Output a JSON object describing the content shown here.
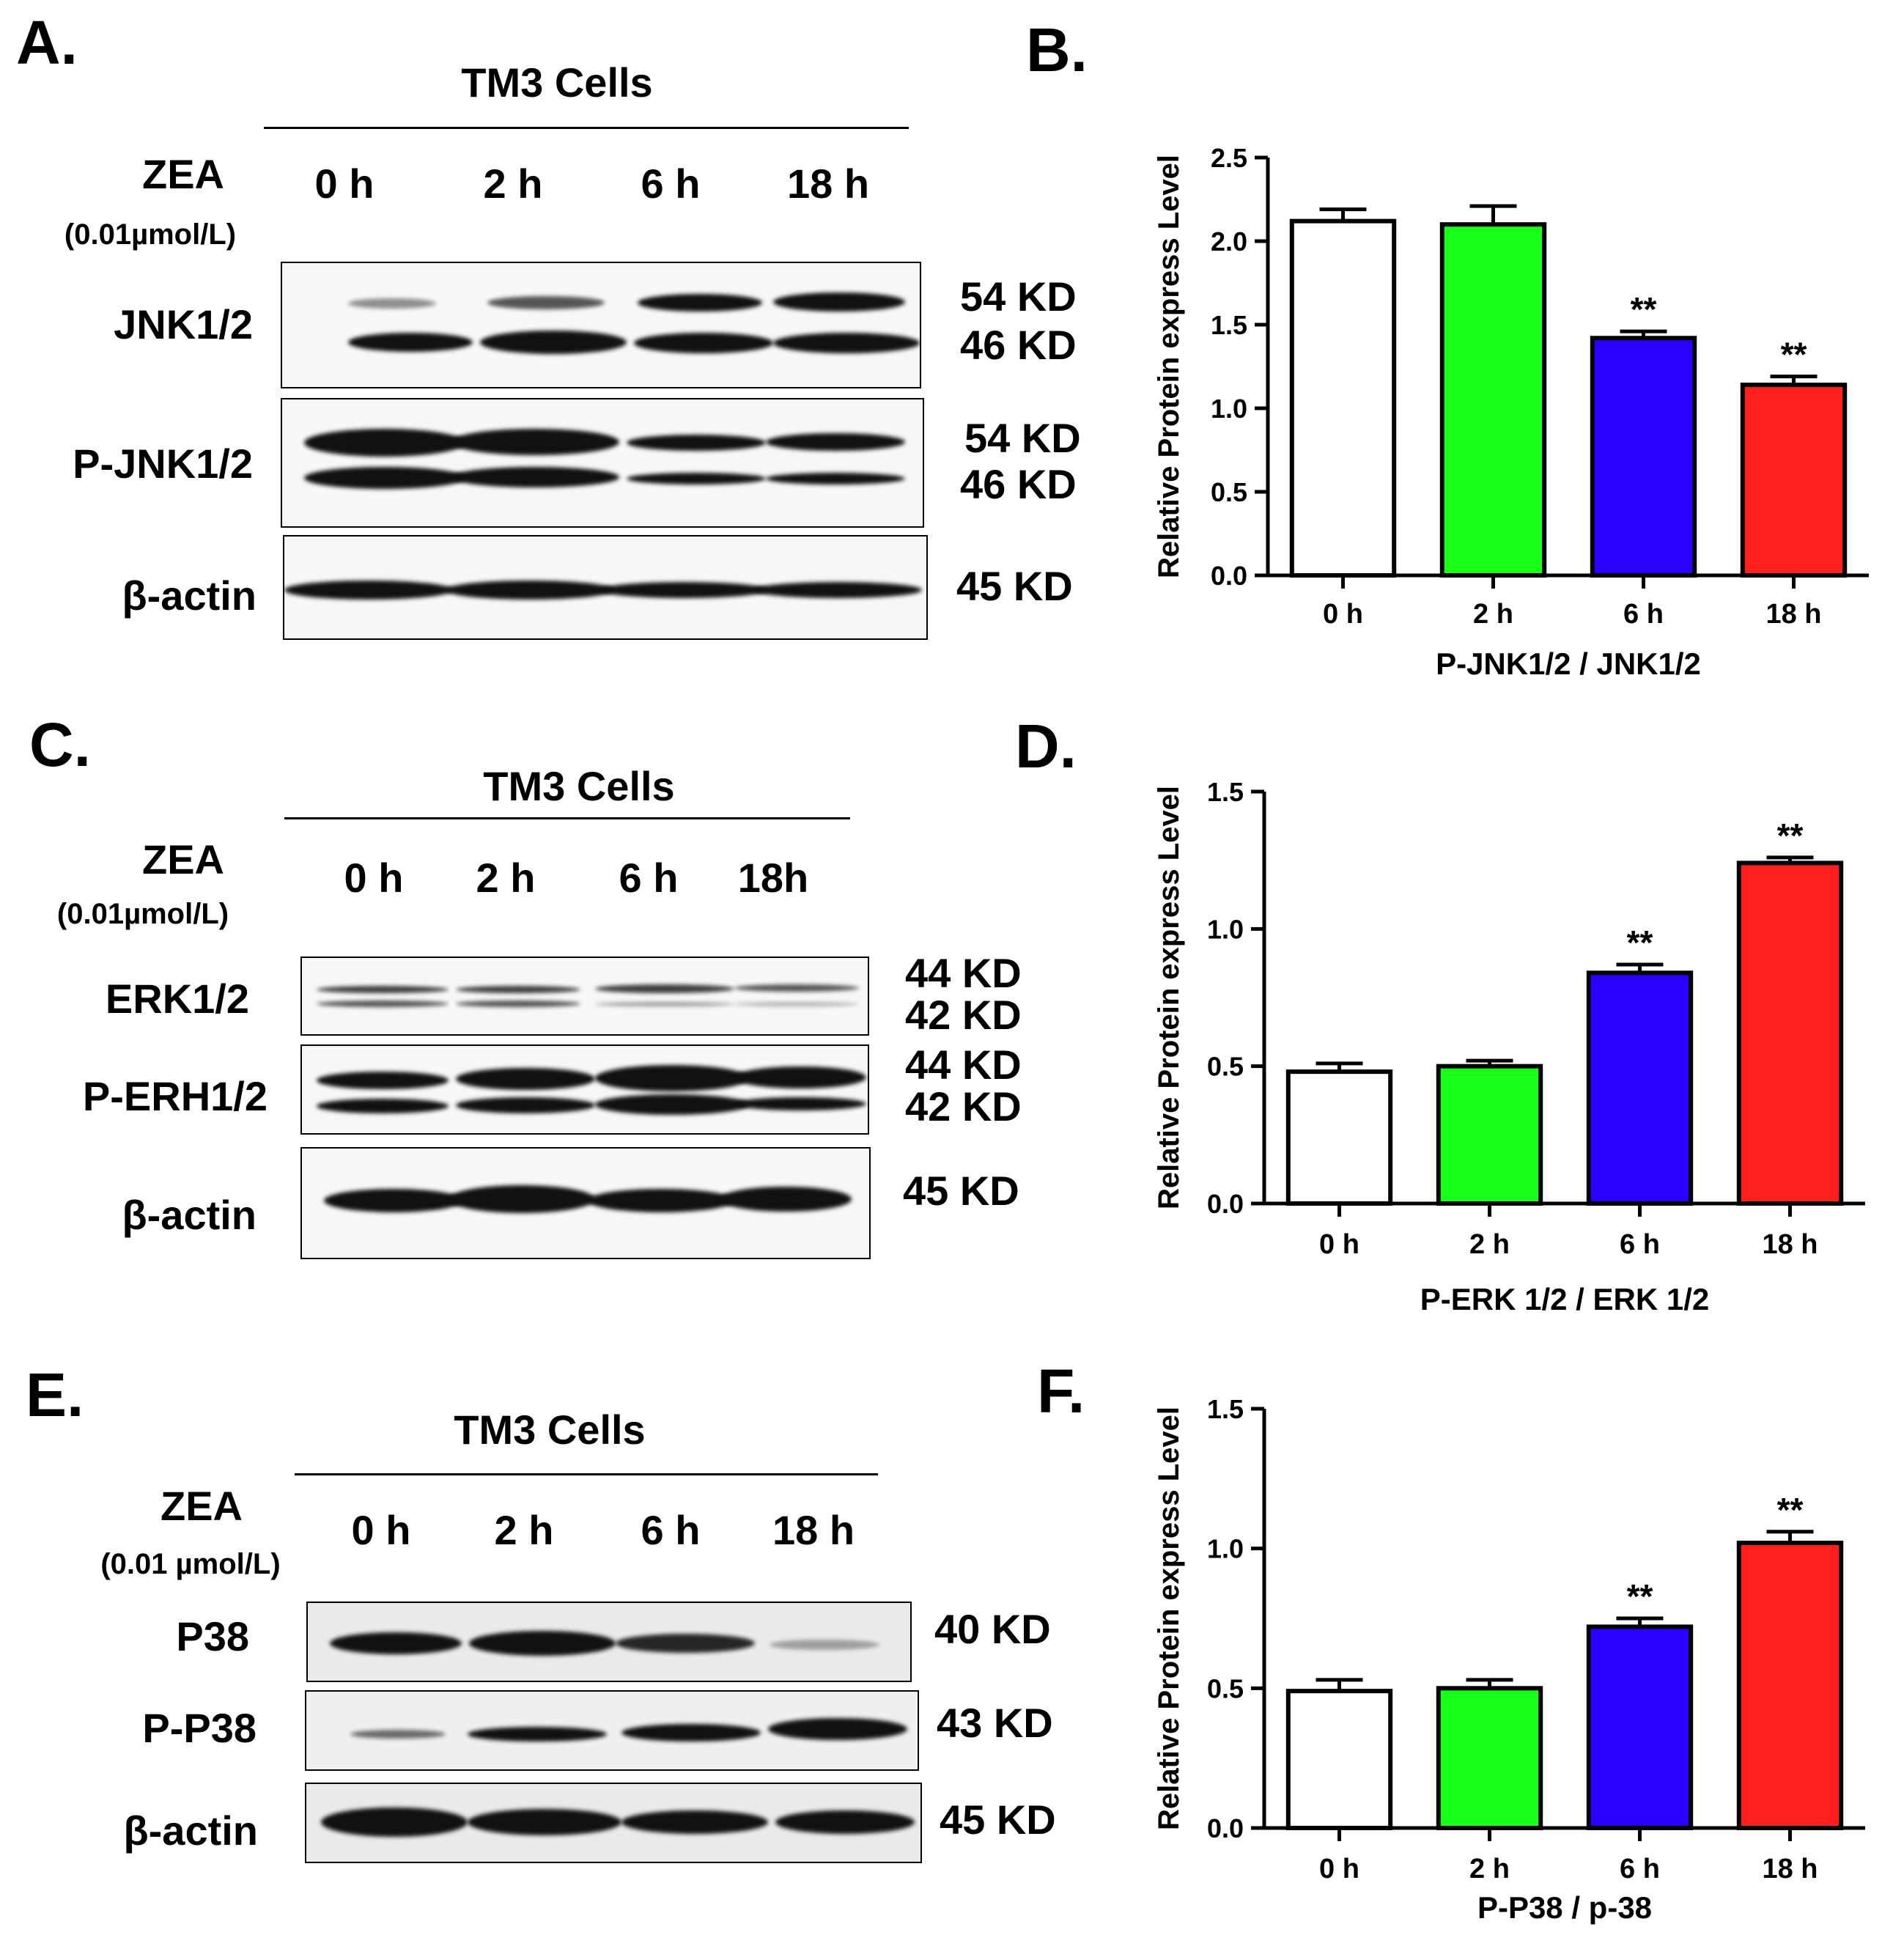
{
  "panels": {
    "A": {
      "letter": "A.",
      "title": "TM3 Cells",
      "treatment": "ZEA",
      "concentration": "(0.01µmol/L)",
      "timepoints": [
        "0 h",
        "2 h",
        "6 h",
        "18 h"
      ],
      "rows": [
        {
          "label": "JNK1/2",
          "kd_top": "54 KD",
          "kd_bottom": "46 KD"
        },
        {
          "label": "P-JNK1/2",
          "kd_top": "54 KD",
          "kd_bottom": "46 KD"
        },
        {
          "label": "β-actin",
          "kd_top": "45 KD"
        }
      ]
    },
    "C": {
      "letter": "C.",
      "title": "TM3 Cells",
      "treatment": "ZEA",
      "concentration": "(0.01µmol/L)",
      "timepoints": [
        "0 h",
        "2 h",
        "6 h",
        "18h"
      ],
      "rows": [
        {
          "label": "ERK1/2",
          "kd_top": "44 KD",
          "kd_bottom": "42 KD"
        },
        {
          "label": "P-ERH1/2",
          "kd_top": "44 KD",
          "kd_bottom": "42 KD"
        },
        {
          "label": "β-actin",
          "kd_top": "45 KD"
        }
      ]
    },
    "E": {
      "letter": "E.",
      "title": "TM3 Cells",
      "treatment": "ZEA",
      "concentration": "(0.01 µmol/L)",
      "timepoints": [
        "0 h",
        "2 h",
        "6 h",
        "18 h"
      ],
      "rows": [
        {
          "label": "P38",
          "kd_top": "40 KD"
        },
        {
          "label": "P-P38",
          "kd_top": "43 KD"
        },
        {
          "label": "β-actin",
          "kd_top": "45 KD"
        }
      ]
    },
    "B": {
      "letter": "B."
    },
    "D": {
      "letter": "D."
    },
    "F": {
      "letter": "F."
    }
  },
  "chart_data": [
    {
      "id": "B",
      "type": "bar",
      "categories": [
        "0 h",
        "2 h",
        "6 h",
        "18 h"
      ],
      "values": [
        2.12,
        2.1,
        1.42,
        1.14
      ],
      "errors": [
        0.07,
        0.11,
        0.04,
        0.05
      ],
      "significance": [
        "",
        "",
        "**",
        "**"
      ],
      "colors": [
        "#ffffff",
        "#19ff19",
        "#2a00ff",
        "#ff1f1f"
      ],
      "ylabel": "Relative Protein express Level",
      "xlabel": "P-JNK1/2 / JNK1/2",
      "ylim": [
        0,
        2.5
      ],
      "yticks": [
        "0.0",
        "0.5",
        "1.0",
        "1.5",
        "2.0",
        "2.5"
      ]
    },
    {
      "id": "D",
      "type": "bar",
      "categories": [
        "0 h",
        "2 h",
        "6 h",
        "18 h"
      ],
      "values": [
        0.48,
        0.5,
        0.84,
        1.24
      ],
      "errors": [
        0.03,
        0.02,
        0.03,
        0.02
      ],
      "significance": [
        "",
        "",
        "**",
        "**"
      ],
      "colors": [
        "#ffffff",
        "#19ff19",
        "#2a00ff",
        "#ff1f1f"
      ],
      "ylabel": "Relative Protein express Level",
      "xlabel": "P-ERK 1/2 / ERK 1/2",
      "ylim": [
        0,
        1.5
      ],
      "yticks": [
        "0.0",
        "0.5",
        "1.0",
        "1.5"
      ]
    },
    {
      "id": "F",
      "type": "bar",
      "categories": [
        "0 h",
        "2 h",
        "6 h",
        "18 h"
      ],
      "values": [
        0.49,
        0.5,
        0.72,
        1.02
      ],
      "errors": [
        0.04,
        0.03,
        0.03,
        0.04
      ],
      "significance": [
        "",
        "",
        "**",
        "**"
      ],
      "colors": [
        "#ffffff",
        "#19ff19",
        "#2a00ff",
        "#ff1f1f"
      ],
      "ylabel": "Relative Protein express Level",
      "xlabel": "P-P38 / p-38",
      "ylim": [
        0,
        1.5
      ],
      "yticks": [
        "0.0",
        "0.5",
        "1.0",
        "1.5"
      ]
    }
  ]
}
